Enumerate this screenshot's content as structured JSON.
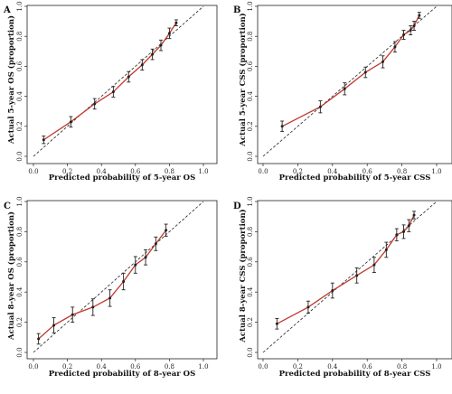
{
  "chart_data": [
    {
      "type": "line",
      "panel": "A",
      "xlabel": "Predicted probability of 5-year OS",
      "ylabel": "Actual 5-year OS (proportion)",
      "xlim": [
        0,
        1
      ],
      "ylim": [
        0,
        1
      ],
      "xticks": [
        "0.0",
        "0.2",
        "0.4",
        "0.6",
        "0.8",
        "1.0"
      ],
      "yticks": [
        "0.0",
        "0.2",
        "0.4",
        "0.6",
        "0.8",
        "1.0"
      ],
      "reference_line": "dashed diagonal y = x",
      "grid": false,
      "series": [
        {
          "x": [
            0.06,
            0.22,
            0.36,
            0.47,
            0.56,
            0.64,
            0.7,
            0.75,
            0.8,
            0.84
          ],
          "y": [
            0.11,
            0.23,
            0.35,
            0.43,
            0.53,
            0.61,
            0.68,
            0.74,
            0.82,
            0.89
          ],
          "err": [
            0.025,
            0.035,
            0.035,
            0.035,
            0.035,
            0.035,
            0.035,
            0.035,
            0.035,
            0.02
          ]
        }
      ],
      "colors": {
        "line": "#c0392b",
        "points": "#222222",
        "reference": "#222222"
      }
    },
    {
      "type": "line",
      "panel": "B",
      "xlabel": "Predicted probability of 5-year CSS",
      "ylabel": "Actual 5-year CSS (proportion)",
      "xlim": [
        0,
        1
      ],
      "ylim": [
        0,
        1
      ],
      "xticks": [
        "0.0",
        "0.2",
        "0.4",
        "0.6",
        "0.8",
        "1.0"
      ],
      "yticks": [
        "0.0",
        "0.2",
        "0.4",
        "0.6",
        "0.8",
        "1.0"
      ],
      "reference_line": "dashed diagonal y = x",
      "grid": false,
      "series": [
        {
          "x": [
            0.11,
            0.33,
            0.47,
            0.59,
            0.69,
            0.76,
            0.81,
            0.85,
            0.87,
            0.9
          ],
          "y": [
            0.2,
            0.33,
            0.45,
            0.56,
            0.63,
            0.73,
            0.81,
            0.84,
            0.87,
            0.94
          ],
          "err": [
            0.035,
            0.04,
            0.04,
            0.035,
            0.04,
            0.035,
            0.03,
            0.03,
            0.03,
            0.02
          ]
        }
      ],
      "colors": {
        "line": "#c0392b",
        "points": "#222222",
        "reference": "#222222"
      }
    },
    {
      "type": "line",
      "panel": "C",
      "xlabel": "Predicted probability of 8-year OS",
      "ylabel": "Actual 8-year OS (proportion)",
      "xlim": [
        0,
        1
      ],
      "ylim": [
        0,
        1
      ],
      "xticks": [
        "0.0",
        "0.2",
        "0.4",
        "0.6",
        "0.8",
        "1.0"
      ],
      "yticks": [
        "0.0",
        "0.2",
        "0.4",
        "0.6",
        "0.8",
        "1.0"
      ],
      "reference_line": "dashed diagonal y = x",
      "grid": false,
      "series": [
        {
          "x": [
            0.03,
            0.12,
            0.23,
            0.35,
            0.45,
            0.53,
            0.6,
            0.66,
            0.72,
            0.78
          ],
          "y": [
            0.09,
            0.18,
            0.25,
            0.3,
            0.36,
            0.47,
            0.58,
            0.63,
            0.72,
            0.81
          ],
          "err": [
            0.035,
            0.05,
            0.05,
            0.055,
            0.055,
            0.055,
            0.055,
            0.05,
            0.045,
            0.04
          ]
        }
      ],
      "colors": {
        "line": "#c0392b",
        "points": "#222222",
        "reference": "#222222"
      }
    },
    {
      "type": "line",
      "panel": "D",
      "xlabel": "Predicted probability of 8-year CSS",
      "ylabel": "Actual 8-year CSS (proportion)",
      "xlim": [
        0,
        1
      ],
      "ylim": [
        0,
        1
      ],
      "xticks": [
        "0.0",
        "0.2",
        "0.4",
        "0.6",
        "0.8",
        "1.0"
      ],
      "yticks": [
        "0.0",
        "0.2",
        "0.4",
        "0.6",
        "0.8",
        "1.0"
      ],
      "reference_line": "dashed diagonal y = x",
      "grid": false,
      "series": [
        {
          "x": [
            0.08,
            0.26,
            0.4,
            0.54,
            0.64,
            0.71,
            0.77,
            0.81,
            0.84,
            0.87
          ],
          "y": [
            0.19,
            0.3,
            0.41,
            0.51,
            0.58,
            0.68,
            0.78,
            0.8,
            0.84,
            0.91
          ],
          "err": [
            0.035,
            0.04,
            0.05,
            0.05,
            0.05,
            0.05,
            0.04,
            0.045,
            0.04,
            0.025
          ]
        }
      ],
      "colors": {
        "line": "#c0392b",
        "points": "#222222",
        "reference": "#222222"
      }
    }
  ]
}
